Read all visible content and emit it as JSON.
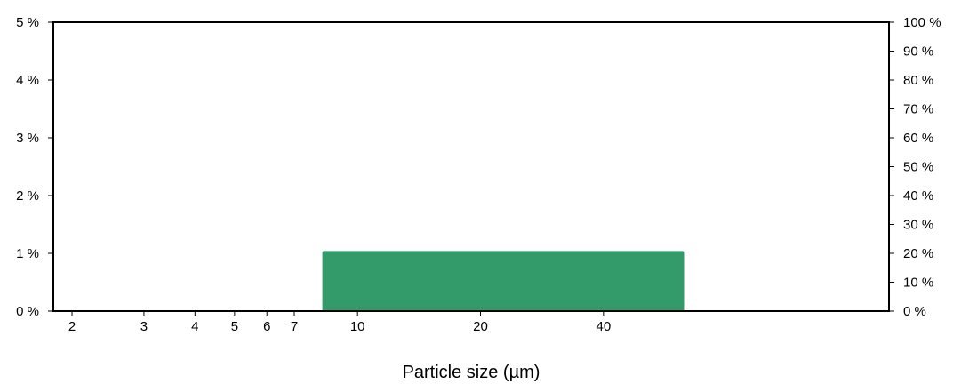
{
  "chart_data": {
    "type": "bar",
    "title": "",
    "xlabel": "Particle size (µm)",
    "ylabel": "",
    "x_scale": "log",
    "xlim": [
      1.8,
      200
    ],
    "ylim": [
      0,
      5
    ],
    "y2lim": [
      0,
      100
    ],
    "x_ticks": [
      {
        "value": 2,
        "label": "2"
      },
      {
        "value": 3,
        "label": "3"
      },
      {
        "value": 4,
        "label": "4"
      },
      {
        "value": 5,
        "label": "5"
      },
      {
        "value": 6,
        "label": "6"
      },
      {
        "value": 7,
        "label": "7"
      },
      {
        "value": 10,
        "label": "10"
      },
      {
        "value": 20,
        "label": "20"
      },
      {
        "value": 40,
        "label": "40"
      }
    ],
    "y_ticks": [
      {
        "value": 0,
        "label": "0 %"
      },
      {
        "value": 1,
        "label": "1 %"
      },
      {
        "value": 2,
        "label": "2 %"
      },
      {
        "value": 3,
        "label": "3 %"
      },
      {
        "value": 4,
        "label": "4 %"
      },
      {
        "value": 5,
        "label": "5 %"
      }
    ],
    "y2_ticks": [
      {
        "value": 0,
        "label": "0 %"
      },
      {
        "value": 10,
        "label": "10 %"
      },
      {
        "value": 20,
        "label": "20 %"
      },
      {
        "value": 30,
        "label": "30 %"
      },
      {
        "value": 40,
        "label": "40 %"
      },
      {
        "value": 50,
        "label": "50 %"
      },
      {
        "value": 60,
        "label": "60 %"
      },
      {
        "value": 70,
        "label": "70 %"
      },
      {
        "value": 80,
        "label": "80 %"
      },
      {
        "value": 90,
        "label": "90 %"
      },
      {
        "value": 100,
        "label": "100 %"
      }
    ],
    "bars": [
      {
        "x_start": 8.2,
        "x_end": 63,
        "value": 1.04
      }
    ],
    "bar_color": "#339a69",
    "grid": false,
    "legend": "none"
  }
}
